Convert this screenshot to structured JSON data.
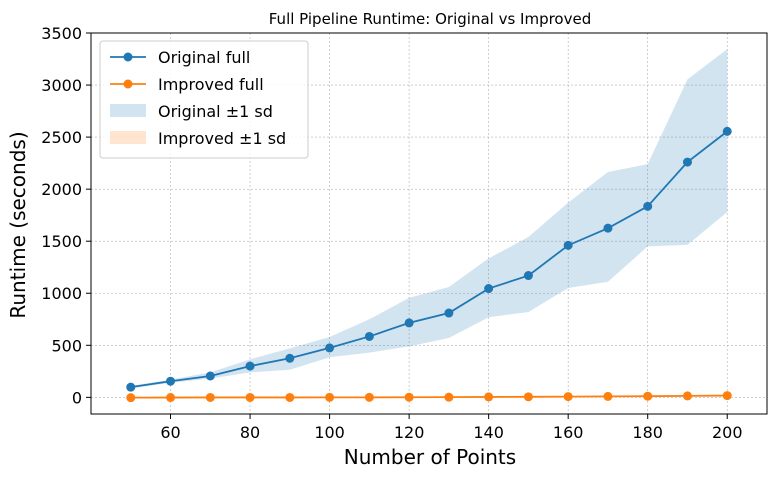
{
  "chart_data": {
    "type": "line",
    "title": "Full Pipeline Runtime: Original vs Improved",
    "xlabel": "Number of Points",
    "ylabel": "Runtime (seconds)",
    "x": [
      50,
      60,
      70,
      80,
      90,
      100,
      110,
      120,
      130,
      140,
      150,
      160,
      170,
      180,
      190,
      200
    ],
    "xlim": [
      40,
      210
    ],
    "ylim": [
      -160,
      3500
    ],
    "xticks": [
      60,
      80,
      100,
      120,
      140,
      160,
      180,
      200
    ],
    "yticks": [
      0,
      500,
      1000,
      1500,
      2000,
      2500,
      3000,
      3500
    ],
    "grid": true,
    "legend_position": "top-left",
    "series": [
      {
        "name": "Original full",
        "color": "#1f77b4",
        "values": [
          98,
          155,
          205,
          300,
          375,
          475,
          585,
          715,
          810,
          1045,
          1170,
          1460,
          1625,
          1835,
          2260,
          2555
        ],
        "band_name": "Original ±1 sd",
        "band_color": "#1f77b4",
        "lower": [
          85,
          140,
          180,
          240,
          265,
          385,
          430,
          490,
          570,
          770,
          820,
          1050,
          1110,
          1450,
          1465,
          1780
        ],
        "upper": [
          110,
          170,
          240,
          365,
          470,
          580,
          750,
          955,
          1060,
          1335,
          1540,
          1870,
          2165,
          2240,
          3055,
          3345
        ]
      },
      {
        "name": "Improved full",
        "color": "#ff7f0e",
        "values": [
          -3,
          -2,
          -1,
          -1,
          -1,
          0,
          0,
          1,
          2,
          4,
          5,
          7,
          9,
          11,
          14,
          17
        ],
        "band_name": "Improved ±1 sd",
        "band_color": "#ff7f0e",
        "lower": [
          -5,
          -4,
          -3,
          -3,
          -3,
          -2,
          -2,
          -1,
          0,
          1,
          2,
          3,
          4,
          5,
          7,
          9
        ],
        "upper": [
          -1,
          0,
          1,
          1,
          1,
          2,
          3,
          3,
          5,
          7,
          8,
          11,
          14,
          17,
          21,
          25
        ]
      }
    ]
  }
}
